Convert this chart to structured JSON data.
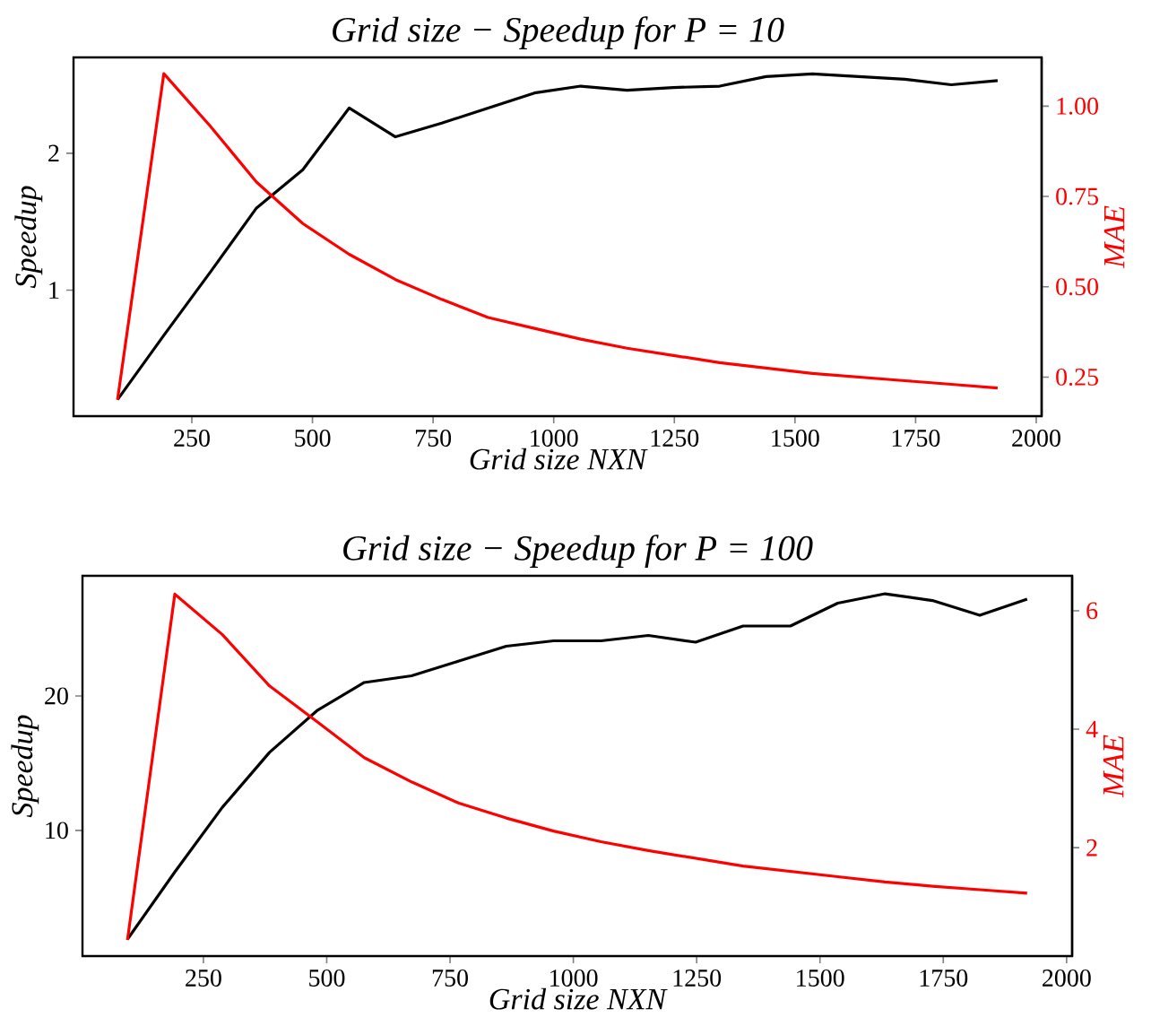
{
  "chart_data": [
    {
      "type": "line",
      "title": "Grid size − Speedup for P = 10",
      "xlabel": "Grid size NXN",
      "ylabel": "Speedup",
      "y2label": "MAE",
      "x": [
        96,
        192,
        288,
        384,
        480,
        576,
        672,
        768,
        864,
        960,
        1056,
        1152,
        1248,
        1344,
        1440,
        1536,
        1632,
        1728,
        1824,
        1920
      ],
      "series": [
        {
          "color": "#000000",
          "values": [
            0.2,
            0.67,
            1.13,
            1.6,
            1.88,
            2.33,
            2.12,
            2.22,
            2.33,
            2.44,
            2.49,
            2.46,
            2.48,
            2.49,
            2.56,
            2.58,
            2.56,
            2.54,
            2.5,
            2.53
          ]
        },
        {
          "color": "#ff0000",
          "axis": "y2",
          "values": [
            0.187,
            1.09,
            0.945,
            0.79,
            0.675,
            0.59,
            0.52,
            0.465,
            0.415,
            0.385,
            0.355,
            0.33,
            0.31,
            0.29,
            0.275,
            0.26,
            0.25,
            0.24,
            0.23,
            0.22
          ]
        }
      ],
      "xlim": [
        4.8,
        2011.2
      ],
      "xticks": [
        250,
        500,
        750,
        1000,
        1250,
        1500,
        1750,
        2000
      ],
      "ylim": [
        0.08,
        2.7
      ],
      "yticks": [
        1,
        2
      ],
      "y2lim": [
        0.142,
        1.135
      ],
      "y2ticks": [
        0.25,
        {
          "value": 0.5,
          "label": "0.50"
        },
        0.75,
        {
          "value": 1.0,
          "label": "1.00"
        }
      ],
      "grid": false,
      "marker": "none",
      "line_style": "solid"
    },
    {
      "type": "line",
      "title": "Grid size − Speedup for P = 100",
      "xlabel": "Grid size NXN",
      "ylabel": "Speedup",
      "y2label": "MAE",
      "x": [
        96,
        192,
        288,
        384,
        480,
        576,
        672,
        768,
        864,
        960,
        1056,
        1152,
        1248,
        1344,
        1440,
        1536,
        1632,
        1728,
        1824,
        1920
      ],
      "series": [
        {
          "color": "#000000",
          "values": [
            1.9,
            6.9,
            11.7,
            15.8,
            18.9,
            21.0,
            21.5,
            22.6,
            23.7,
            24.1,
            24.1,
            24.5,
            24.0,
            25.2,
            25.2,
            26.9,
            27.6,
            27.1,
            26.0,
            27.2
          ]
        },
        {
          "color": "#ff0000",
          "axis": "y2",
          "values": [
            0.44,
            6.28,
            5.6,
            4.73,
            4.13,
            3.52,
            3.11,
            2.75,
            2.5,
            2.28,
            2.1,
            1.95,
            1.82,
            1.69,
            1.6,
            1.51,
            1.42,
            1.35,
            1.29,
            1.23
          ]
        }
      ],
      "xlim": [
        4.8,
        2011.2
      ],
      "xticks": [
        250,
        500,
        750,
        1000,
        1250,
        1500,
        1750,
        2000
      ],
      "ylim": [
        0.65,
        28.94
      ],
      "yticks": [
        10,
        20
      ],
      "y2lim": [
        0.17,
        6.59
      ],
      "y2ticks": [
        2,
        4,
        6
      ],
      "grid": false,
      "marker": "none",
      "line_style": "solid"
    }
  ]
}
